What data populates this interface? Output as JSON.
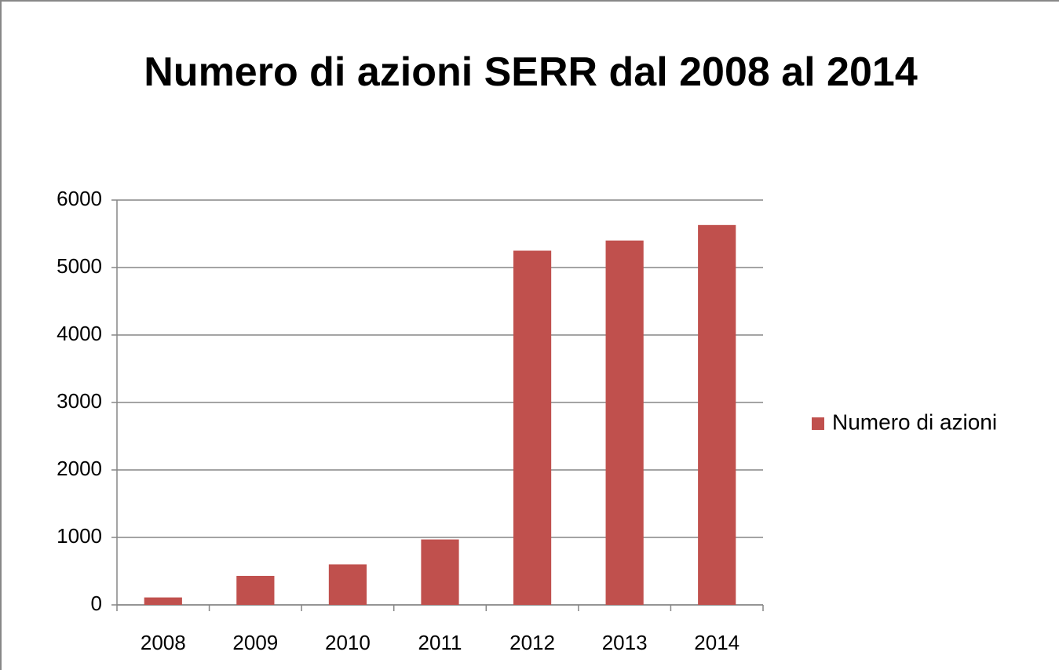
{
  "chart_data": {
    "type": "bar",
    "title": "Numero di azioni SERR dal 2008 al 2014",
    "categories": [
      "2008",
      "2009",
      "2010",
      "2011",
      "2012",
      "2013",
      "2014"
    ],
    "series": [
      {
        "name": "Numero di azioni",
        "color": "#c0504d",
        "values": [
          110,
          430,
          600,
          970,
          5250,
          5400,
          5630
        ]
      }
    ],
    "ylim": [
      0,
      6000
    ],
    "yticks": [
      0,
      1000,
      2000,
      3000,
      4000,
      5000,
      6000
    ],
    "grid": true,
    "legend": "right"
  }
}
